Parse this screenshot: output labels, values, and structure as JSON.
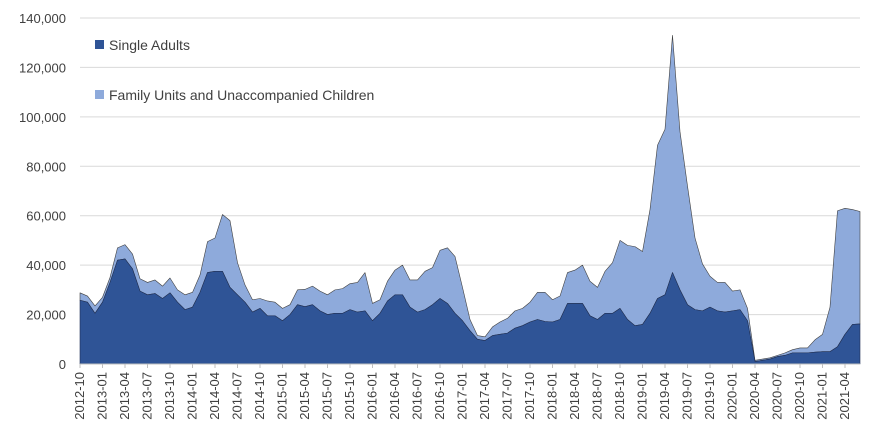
{
  "chart_data": {
    "type": "area",
    "stacked": true,
    "title": "",
    "xlabel": "",
    "ylabel": "",
    "ylim": [
      0,
      140000
    ],
    "yticks": [
      0,
      20000,
      40000,
      60000,
      80000,
      100000,
      120000,
      140000
    ],
    "ytick_labels": [
      "0",
      "20,000",
      "40,000",
      "60,000",
      "80,000",
      "100,000",
      "120,000",
      "140,000"
    ],
    "xtick_labels": [
      "2012-10",
      "2013-01",
      "2013-04",
      "2013-07",
      "2013-10",
      "2014-01",
      "2014-04",
      "2014-07",
      "2014-10",
      "2015-01",
      "2015-04",
      "2015-07",
      "2015-10",
      "2016-01",
      "2016-04",
      "2016-07",
      "2016-10",
      "2017-01",
      "2017-04",
      "2017-07",
      "2017-10",
      "2018-01",
      "2018-04",
      "2018-07",
      "2018-10",
      "2019-01",
      "2019-04",
      "2019-07",
      "2019-10",
      "2020-01",
      "2020-04",
      "2020-07",
      "2020-10",
      "2021-01",
      "2021-04"
    ],
    "grid": "horizontal",
    "legend_position": "top-left",
    "x": [
      "2012-10",
      "2012-11",
      "2012-12",
      "2013-01",
      "2013-02",
      "2013-03",
      "2013-04",
      "2013-05",
      "2013-06",
      "2013-07",
      "2013-08",
      "2013-09",
      "2013-10",
      "2013-11",
      "2013-12",
      "2014-01",
      "2014-02",
      "2014-03",
      "2014-04",
      "2014-05",
      "2014-06",
      "2014-07",
      "2014-08",
      "2014-09",
      "2014-10",
      "2014-11",
      "2014-12",
      "2015-01",
      "2015-02",
      "2015-03",
      "2015-04",
      "2015-05",
      "2015-06",
      "2015-07",
      "2015-08",
      "2015-09",
      "2015-10",
      "2015-11",
      "2015-12",
      "2016-01",
      "2016-02",
      "2016-03",
      "2016-04",
      "2016-05",
      "2016-06",
      "2016-07",
      "2016-08",
      "2016-09",
      "2016-10",
      "2016-11",
      "2016-12",
      "2017-01",
      "2017-02",
      "2017-03",
      "2017-04",
      "2017-05",
      "2017-06",
      "2017-07",
      "2017-08",
      "2017-09",
      "2017-10",
      "2017-11",
      "2017-12",
      "2018-01",
      "2018-02",
      "2018-03",
      "2018-04",
      "2018-05",
      "2018-06",
      "2018-07",
      "2018-08",
      "2018-09",
      "2018-10",
      "2018-11",
      "2018-12",
      "2019-01",
      "2019-02",
      "2019-03",
      "2019-04",
      "2019-05",
      "2019-06",
      "2019-07",
      "2019-08",
      "2019-09",
      "2019-10",
      "2019-11",
      "2019-12",
      "2020-01",
      "2020-02",
      "2020-03",
      "2020-04",
      "2020-05",
      "2020-06",
      "2020-07",
      "2020-08",
      "2020-09",
      "2020-10",
      "2020-11",
      "2020-12",
      "2021-01",
      "2021-02",
      "2021-03",
      "2021-04",
      "2021-05",
      "2021-06"
    ],
    "series": [
      {
        "name": "Single Adults",
        "color": "#2f5496",
        "values": [
          25800,
          25000,
          20500,
          25000,
          33000,
          42000,
          42500,
          38500,
          29500,
          28000,
          28500,
          26500,
          28800,
          25000,
          22000,
          23000,
          29000,
          37000,
          37500,
          37500,
          31000,
          28000,
          25000,
          21000,
          22500,
          19500,
          19500,
          17500,
          20000,
          24000,
          23200,
          24000,
          21500,
          20000,
          20500,
          20500,
          22000,
          21000,
          21500,
          17500,
          20500,
          25500,
          28000,
          28000,
          23000,
          21000,
          22000,
          24000,
          26500,
          24500,
          20500,
          17500,
          13500,
          10000,
          9500,
          11500,
          12000,
          12500,
          14500,
          15500,
          17000,
          18000,
          17200,
          17000,
          18000,
          24500,
          24500,
          24500,
          19500,
          18000,
          20500,
          20500,
          22500,
          18000,
          15500,
          16000,
          20500,
          26500,
          28000,
          37000,
          30000,
          24000,
          22000,
          21500,
          23000,
          21500,
          21000,
          21500,
          22000,
          17500,
          1000,
          1500,
          2000,
          3000,
          3500,
          4500,
          4500,
          4500,
          4800,
          5000,
          5000,
          7000,
          12000,
          16000,
          16200
        ]
      },
      {
        "name": "Family Units and Unaccompanied Children",
        "color": "#8eaadb",
        "values": [
          3000,
          2500,
          3000,
          2000,
          2000,
          5000,
          5800,
          6000,
          5000,
          5000,
          5500,
          5000,
          6000,
          5000,
          6000,
          6000,
          7000,
          12500,
          13500,
          23000,
          27000,
          13000,
          7000,
          5000,
          4000,
          6000,
          5500,
          5000,
          4000,
          6000,
          7000,
          7500,
          8000,
          8000,
          9500,
          10000,
          10500,
          12000,
          15500,
          7000,
          5500,
          8000,
          10000,
          12000,
          11000,
          13000,
          15500,
          15000,
          19500,
          22500,
          23000,
          13500,
          4500,
          1500,
          1500,
          3500,
          5000,
          6000,
          7000,
          7000,
          8000,
          11000,
          11800,
          9000,
          9500,
          12500,
          13500,
          15500,
          14000,
          13000,
          17000,
          20500,
          27500,
          30000,
          32000,
          29500,
          42000,
          62000,
          67000,
          96000,
          64000,
          48000,
          29000,
          19000,
          12500,
          11500,
          12000,
          8000,
          8000,
          5000,
          500,
          500,
          500,
          500,
          1000,
          1300,
          2000,
          2000,
          5000,
          7000,
          18000,
          55000,
          51000,
          46500,
          45500
        ]
      }
    ]
  }
}
